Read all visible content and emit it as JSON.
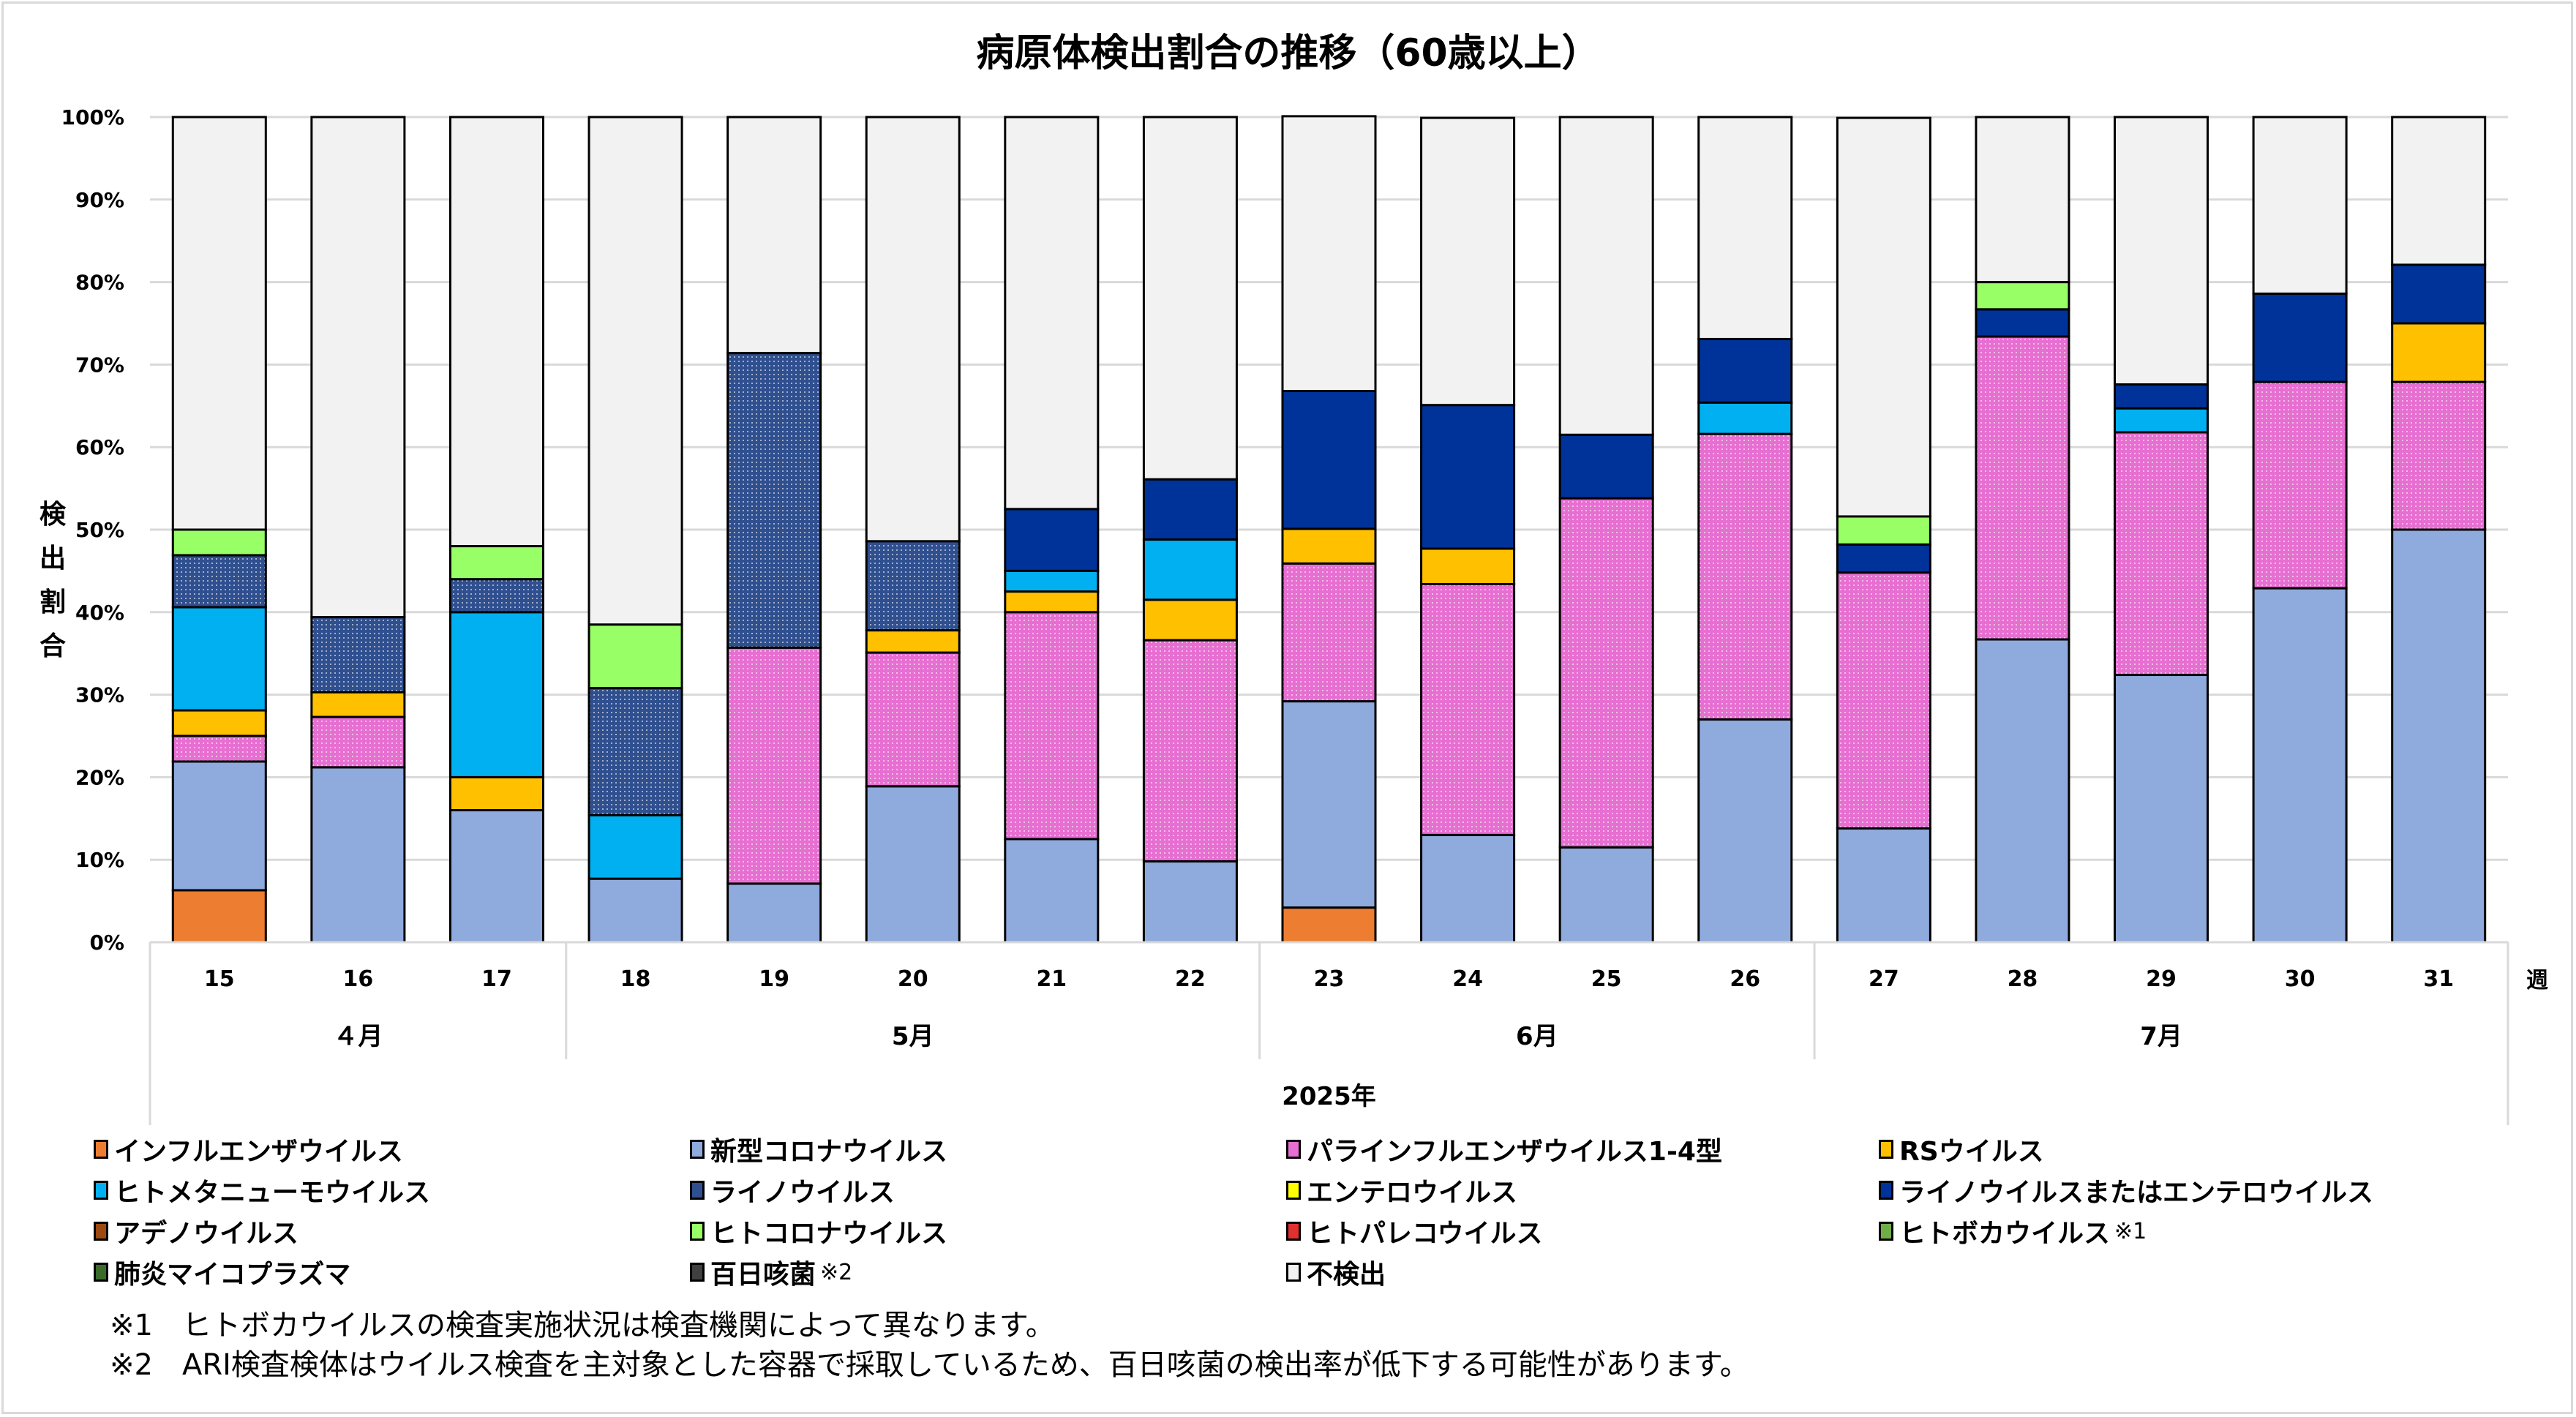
{
  "title": "病原体検出割合の推移（60歳以上）",
  "chart_data": {
    "type": "bar",
    "stacked": true,
    "percent": true,
    "title": "病原体検出割合の推移（60歳以上）",
    "ylabel": "検出割合",
    "xlabel": "2025年",
    "x_unit_label": "週",
    "ylim": [
      0,
      100
    ],
    "yticks": [
      "0%",
      "10%",
      "20%",
      "30%",
      "40%",
      "50%",
      "60%",
      "70%",
      "80%",
      "90%",
      "100%"
    ],
    "grid": true,
    "legend_position": "bottom",
    "categories": [
      "15",
      "16",
      "17",
      "18",
      "19",
      "20",
      "21",
      "22",
      "23",
      "24",
      "25",
      "26",
      "27",
      "28",
      "29",
      "30",
      "31"
    ],
    "months": [
      {
        "label": "４月",
        "span": 3
      },
      {
        "label": "5月",
        "span": 5
      },
      {
        "label": "6月",
        "span": 4
      },
      {
        "label": "7月",
        "span": 5
      }
    ],
    "series": [
      {
        "name": "インフルエンザウイルス",
        "color": "#ED7D31",
        "values": [
          6.3,
          0,
          0,
          0,
          0,
          0,
          0,
          0,
          4.2,
          0,
          0,
          0,
          0,
          0,
          0,
          0,
          0
        ]
      },
      {
        "name": "新型コロナウイルス",
        "color": "#8FAADC",
        "values": [
          15.6,
          21.2,
          16.0,
          7.7,
          7.1,
          18.9,
          12.5,
          9.8,
          25.0,
          13.0,
          11.5,
          27.0,
          13.8,
          36.7,
          32.4,
          42.9,
          50.0
        ]
      },
      {
        "name": "パラインフルエンザウイルス1-4型",
        "color": "#E66FD1",
        "pattern": true,
        "values": [
          3.1,
          6.1,
          0,
          0,
          28.6,
          16.2,
          27.5,
          26.8,
          16.7,
          30.4,
          42.3,
          34.6,
          31.0,
          36.7,
          29.4,
          25.0,
          17.9
        ]
      },
      {
        "name": "RSウイルス",
        "color": "#FFC000",
        "values": [
          3.1,
          3.0,
          4.0,
          0,
          0,
          2.7,
          2.5,
          4.9,
          4.2,
          4.3,
          0,
          0,
          0,
          0,
          0,
          0,
          7.1
        ]
      },
      {
        "name": "ヒトメタニューモウイルス",
        "color": "#00B0F0",
        "values": [
          12.5,
          0,
          20.0,
          7.7,
          0,
          0,
          2.5,
          7.3,
          0,
          0,
          0,
          3.8,
          0,
          0,
          2.9,
          0,
          0
        ]
      },
      {
        "name": "ライノウイルス",
        "color": "#2F4F8F",
        "pattern": true,
        "values": [
          6.3,
          9.1,
          4.0,
          15.4,
          35.7,
          10.8,
          0,
          0,
          0,
          0,
          0,
          0,
          0,
          0,
          0,
          0,
          0
        ]
      },
      {
        "name": "エンテロウイルス",
        "color": "#FFFF00",
        "values": [
          0,
          0,
          0,
          0,
          0,
          0,
          0,
          0,
          0,
          0,
          0,
          0,
          0,
          0,
          0,
          0,
          0
        ]
      },
      {
        "name": "ライノウイルスまたはエンテロウイルス",
        "color": "#003399",
        "values": [
          0,
          0,
          0,
          0,
          0,
          0,
          7.5,
          7.3,
          16.7,
          17.4,
          7.7,
          7.7,
          3.4,
          3.3,
          2.9,
          10.7,
          7.1
        ]
      },
      {
        "name": "アデノウイルス",
        "color": "#9C4A11",
        "values": [
          0,
          0,
          0,
          0,
          0,
          0,
          0,
          0,
          0,
          0,
          0,
          0,
          0,
          0,
          0,
          0,
          0
        ]
      },
      {
        "name": "ヒトコロナウイルス",
        "color": "#99FF66",
        "values": [
          3.1,
          0,
          4.0,
          7.7,
          0,
          0,
          0,
          0,
          0,
          0,
          0,
          0,
          3.4,
          3.3,
          0,
          0,
          0
        ]
      },
      {
        "name": "ヒトパレコウイルス",
        "color": "#E03030",
        "pattern": true,
        "values": [
          0,
          0,
          0,
          0,
          0,
          0,
          0,
          0,
          0,
          0,
          0,
          0,
          0,
          0,
          0,
          0,
          0
        ]
      },
      {
        "name": "ヒトボカウイルス",
        "note": "※1",
        "color": "#70AD47",
        "values": [
          0,
          0,
          0,
          0,
          0,
          0,
          0,
          0,
          0,
          0,
          0,
          0,
          0,
          0,
          0,
          0,
          0
        ]
      },
      {
        "name": "肺炎マイコプラズマ",
        "color": "#3A6B2A",
        "values": [
          0,
          0,
          0,
          0,
          0,
          0,
          0,
          0,
          0,
          0,
          0,
          0,
          0,
          0,
          0,
          0,
          0
        ]
      },
      {
        "name": "百日咳菌",
        "note": "※2",
        "color": "#404040",
        "values": [
          0,
          0,
          0,
          0,
          0,
          0,
          0,
          0,
          0,
          0,
          0,
          0,
          0,
          0,
          0,
          0,
          0
        ]
      },
      {
        "name": "不検出",
        "color": "#F2F2F2",
        "values": [
          50.0,
          60.6,
          52.0,
          61.5,
          28.6,
          51.4,
          47.5,
          43.9,
          33.3,
          34.8,
          38.5,
          26.9,
          48.3,
          20.0,
          32.4,
          21.4,
          17.9
        ]
      }
    ]
  },
  "legend": [
    {
      "label": "インフルエンザウイルス",
      "note": ""
    },
    {
      "label": "新型コロナウイルス",
      "note": ""
    },
    {
      "label": "パラインフルエンザウイルス1-4型",
      "note": ""
    },
    {
      "label": "RSウイルス",
      "note": ""
    },
    {
      "label": "ヒトメタニューモウイルス",
      "note": ""
    },
    {
      "label": "ライノウイルス",
      "note": ""
    },
    {
      "label": "エンテロウイルス",
      "note": ""
    },
    {
      "label": "ライノウイルスまたはエンテロウイルス",
      "note": ""
    },
    {
      "label": "アデノウイルス",
      "note": ""
    },
    {
      "label": "ヒトコロナウイルス",
      "note": ""
    },
    {
      "label": "ヒトパレコウイルス",
      "note": ""
    },
    {
      "label": "ヒトボカウイルス",
      "note": "※1"
    },
    {
      "label": "肺炎マイコプラズマ",
      "note": ""
    },
    {
      "label": "百日咳菌",
      "note": "※2"
    },
    {
      "label": "不検出",
      "note": ""
    }
  ],
  "notes": [
    "※1　ヒトボカウイルスの検査実施状況は検査機関によって異なります。",
    "※2　ARI検査検体はウイルス検査を主対象とした容器で採取しているため、百日咳菌の検出率が低下する可能性があります。"
  ]
}
